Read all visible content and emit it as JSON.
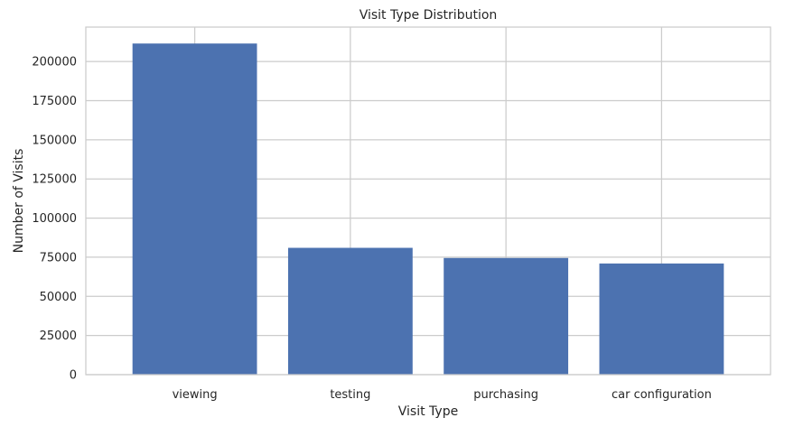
{
  "chart_data": {
    "type": "bar",
    "title": "Visit Type Distribution",
    "xlabel": "Visit Type",
    "ylabel": "Number of Visits",
    "categories": [
      "viewing",
      "testing",
      "purchasing",
      "car configuration"
    ],
    "values": [
      211500,
      81000,
      74500,
      71000
    ],
    "ylim": [
      0,
      222000
    ],
    "yticks": [
      0,
      25000,
      50000,
      75000,
      100000,
      125000,
      150000,
      175000,
      200000
    ],
    "grid": true,
    "bar_color": "#4c72b0",
    "grid_color": "#cccccc"
  }
}
